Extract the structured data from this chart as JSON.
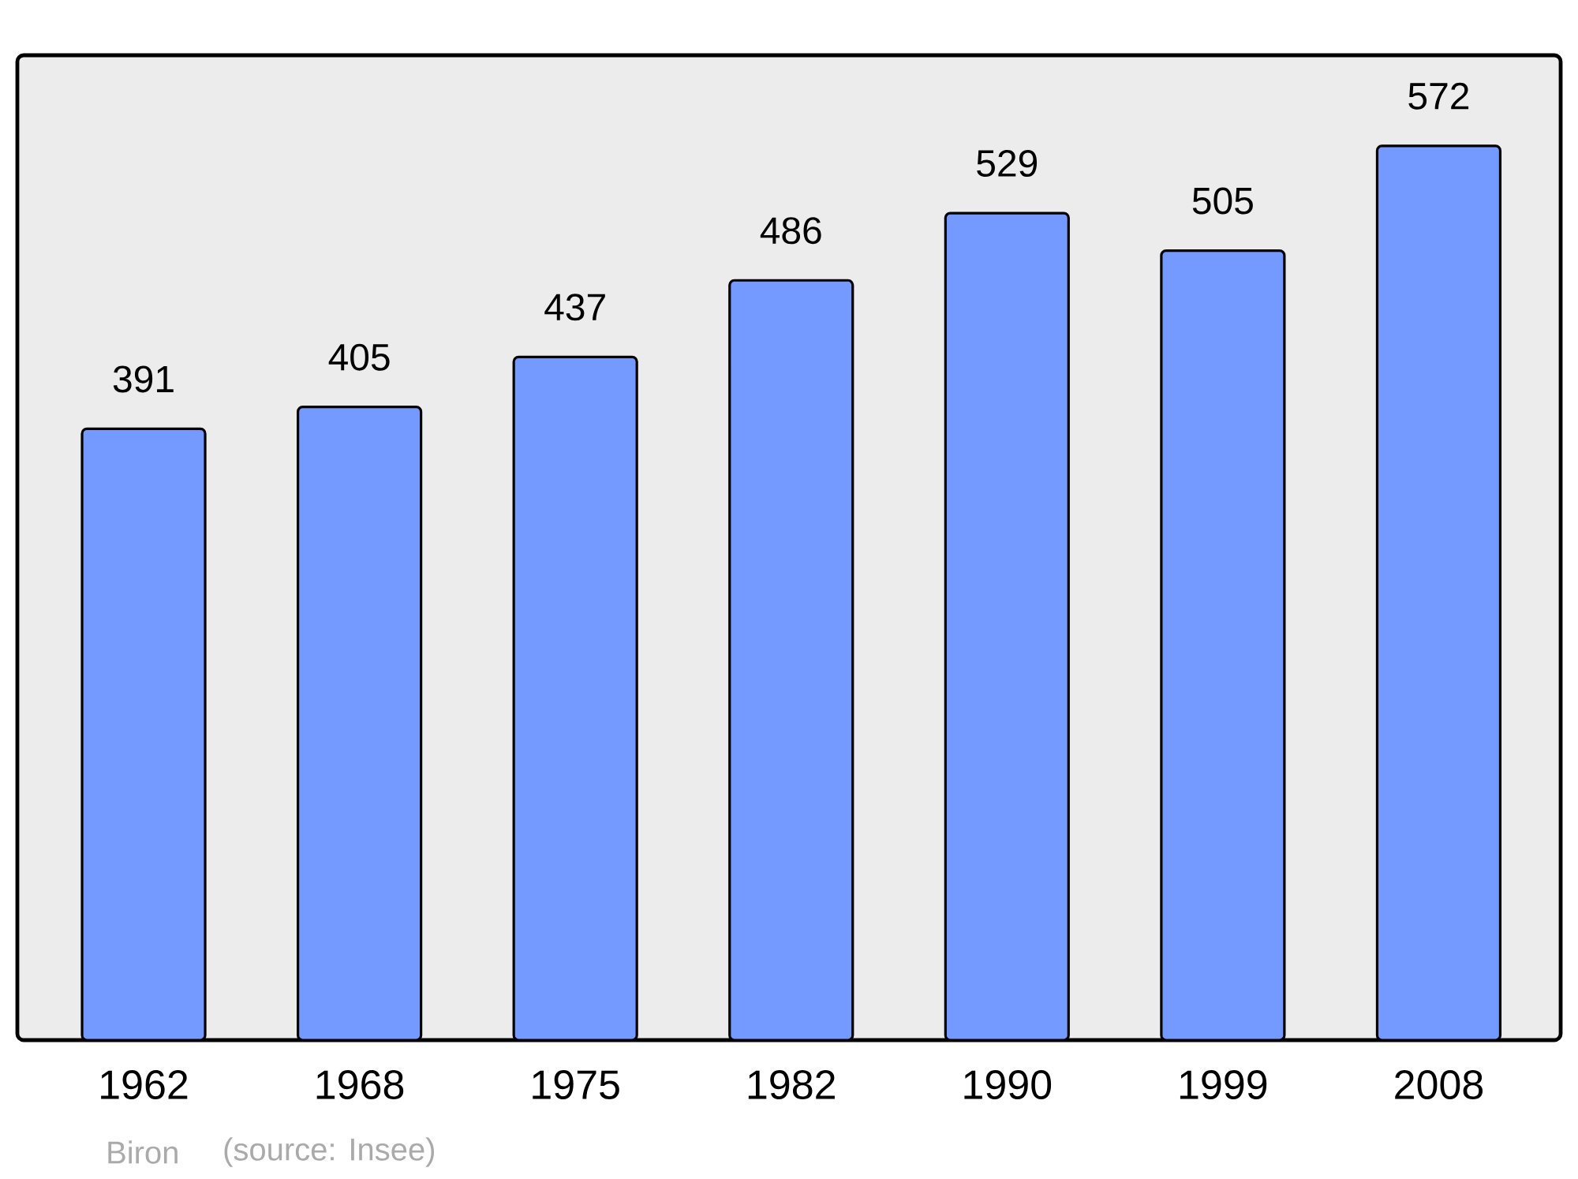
{
  "chart_data": {
    "type": "bar",
    "categories": [
      "1962",
      "1968",
      "1975",
      "1982",
      "1990",
      "1999",
      "2008"
    ],
    "values": [
      391,
      405,
      437,
      486,
      529,
      505,
      572
    ],
    "color": "#7499ff",
    "ylim": [
      0,
      630
    ],
    "data_labels": true,
    "tick_labels": "x",
    "annotations": [
      "Biron",
      "(source: Insee)"
    ]
  }
}
